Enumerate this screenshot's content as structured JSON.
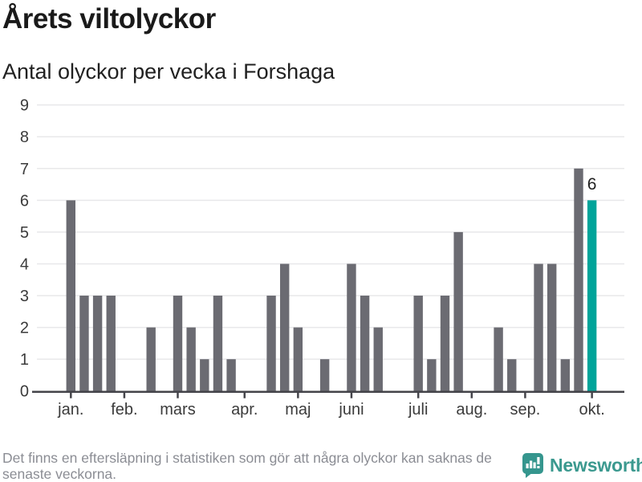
{
  "header": {
    "title": "Årets viltolyckor",
    "subtitle": "Antal olyckor per vecka i Forshaga"
  },
  "chart_data": {
    "type": "bar",
    "title": "Årets viltolyckor",
    "subtitle": "Antal olyckor per vecka i Forshaga",
    "xlabel": "",
    "ylabel": "",
    "x_unit": "vecka",
    "values": [
      6,
      3,
      3,
      3,
      0,
      0,
      2,
      0,
      3,
      2,
      1,
      3,
      1,
      0,
      0,
      3,
      4,
      2,
      0,
      1,
      0,
      4,
      3,
      2,
      0,
      0,
      3,
      1,
      3,
      5,
      0,
      0,
      2,
      1,
      0,
      4,
      4,
      1,
      7,
      6
    ],
    "week_count": 40,
    "ylim": [
      0,
      9
    ],
    "y_ticks": [
      0,
      1,
      2,
      3,
      4,
      5,
      6,
      7,
      8,
      9
    ],
    "grid": true,
    "legend": false,
    "month_ticks": [
      {
        "label": "jan.",
        "index": 0
      },
      {
        "label": "feb.",
        "index": 4
      },
      {
        "label": "mars",
        "index": 8
      },
      {
        "label": "apr.",
        "index": 13
      },
      {
        "label": "maj",
        "index": 17
      },
      {
        "label": "juni",
        "index": 21
      },
      {
        "label": "juli",
        "index": 26
      },
      {
        "label": "aug.",
        "index": 30
      },
      {
        "label": "sep.",
        "index": 34
      },
      {
        "label": "okt.",
        "index": 39
      }
    ],
    "highlight": {
      "index": 39,
      "value_label": "6"
    },
    "colors": {
      "bar": "#6b6b72",
      "highlight_bar": "#00a49a",
      "gridline": "#e8e8ea",
      "axis": "#44444a",
      "tick_label": "#3b3b3b",
      "annotation": "#1f1f1f"
    }
  },
  "footer": {
    "disclaimer": "Det finns en eftersläpning i statistiken som gör att några olyckor kan saknas de senaste veckorna.",
    "brand": "Newsworthy",
    "brand_color": "#3b998f"
  }
}
